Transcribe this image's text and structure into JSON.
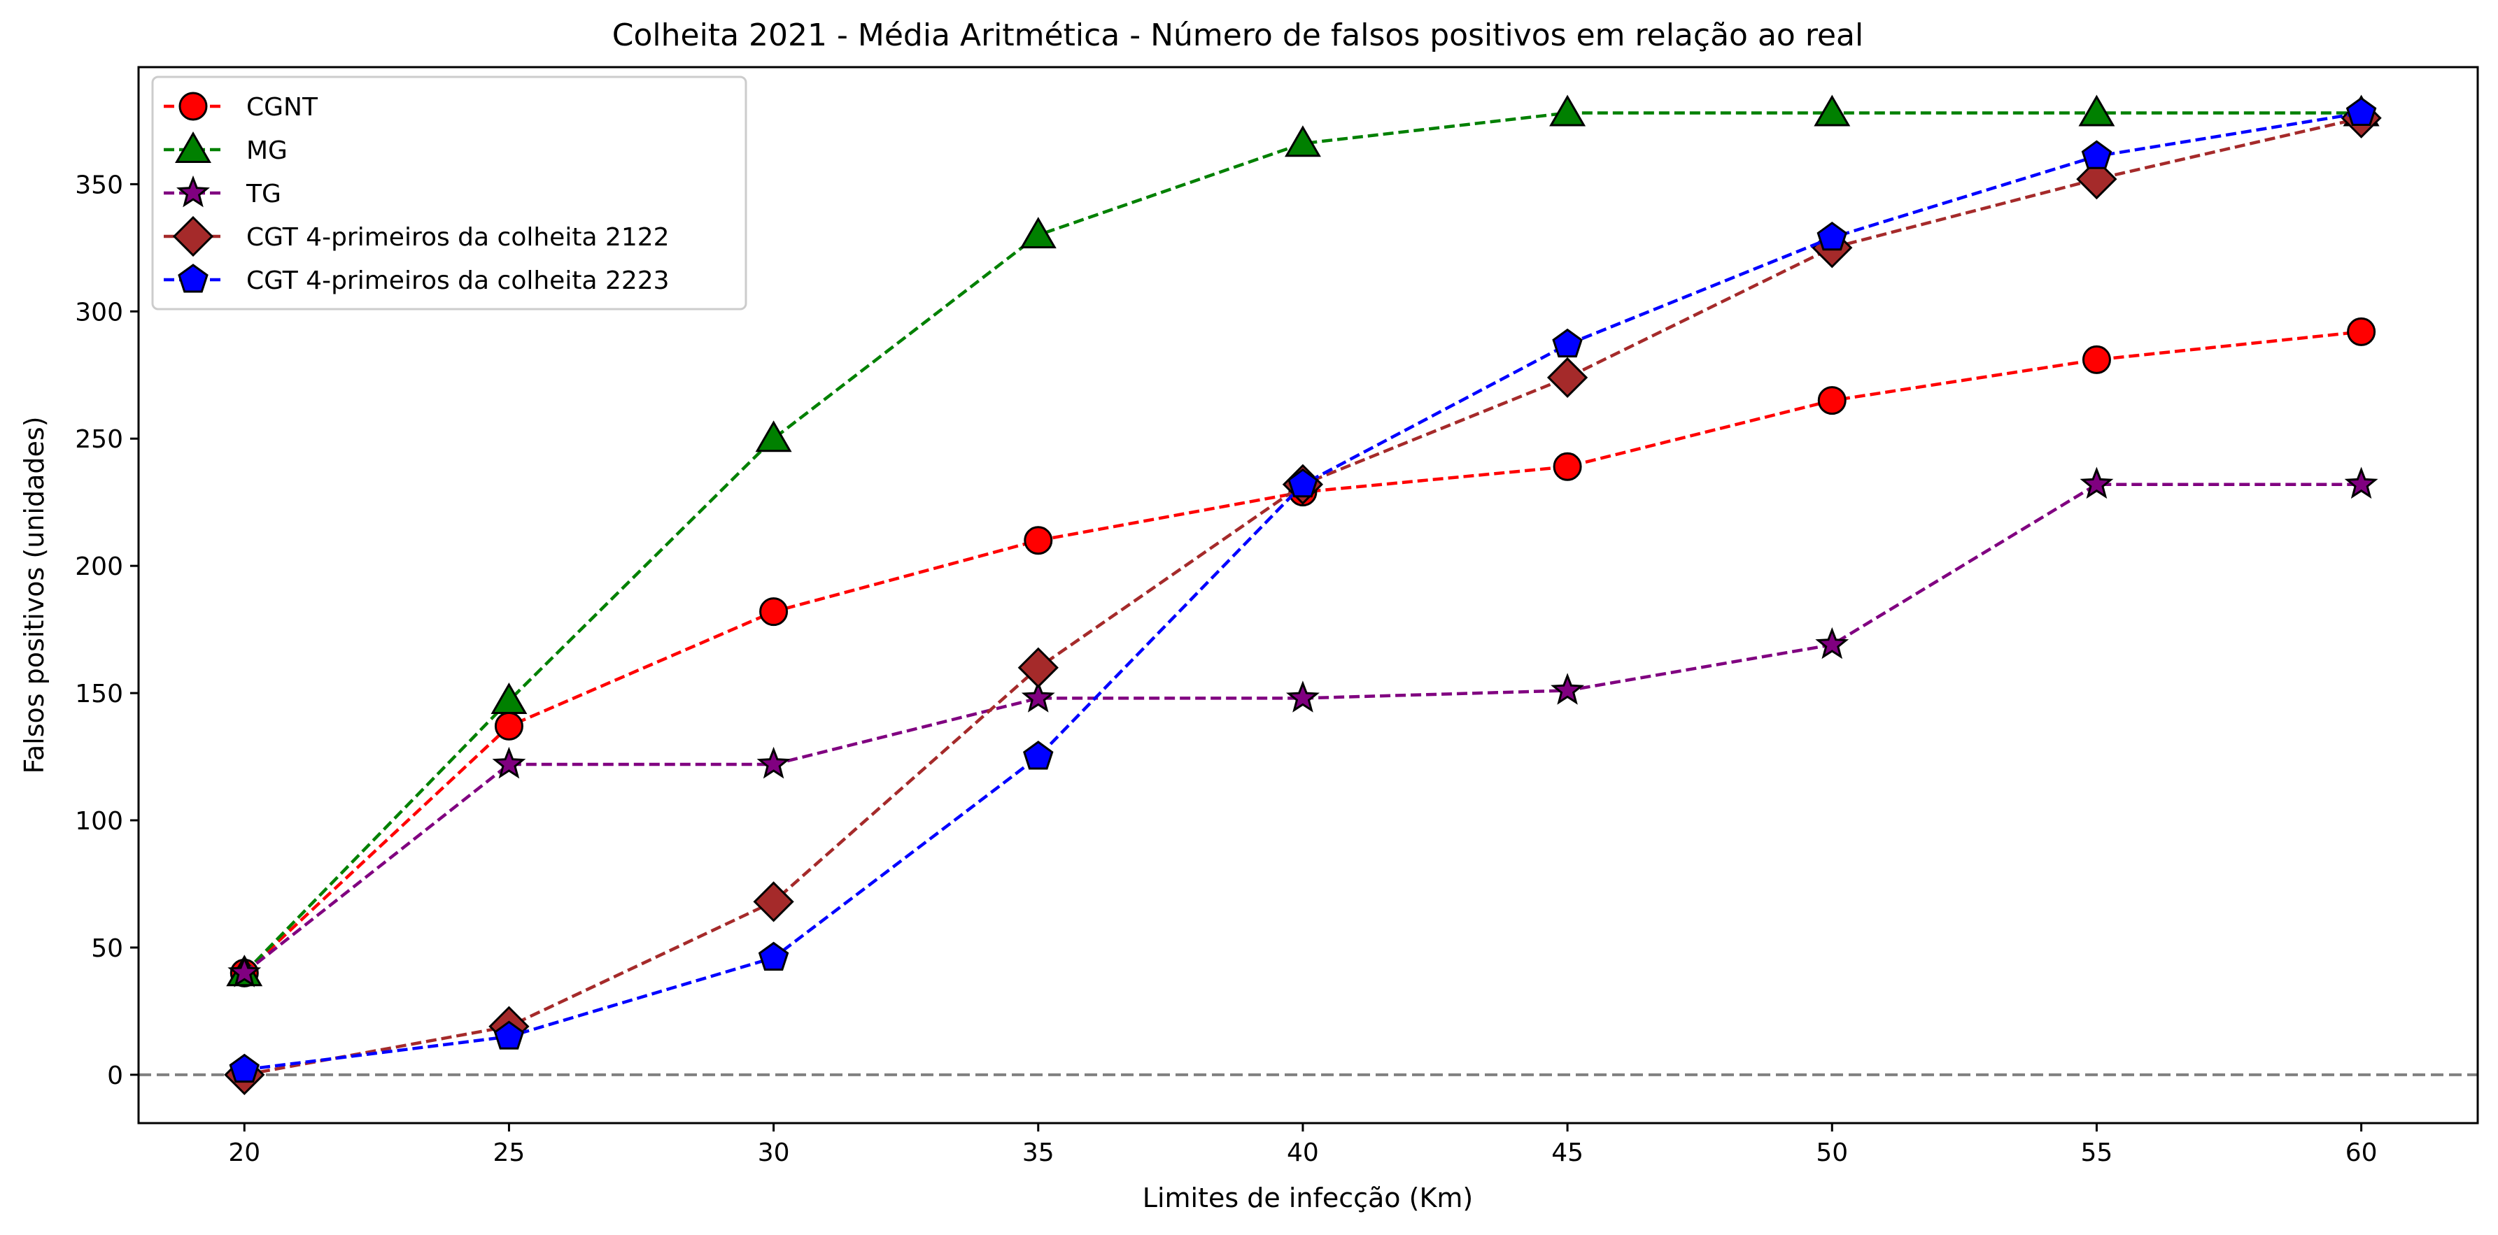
{
  "chart_data": {
    "type": "line",
    "title": "Colheita 2021 - Média Aritmética - Número de falsos positivos em relação ao real",
    "xlabel": "Limites de infecção (Km)",
    "ylabel": "Falsos positivos (unidades)",
    "x": [
      20,
      25,
      30,
      35,
      40,
      45,
      50,
      55,
      60
    ],
    "xlim": [
      18,
      62.2
    ],
    "ylim": [
      -19,
      396
    ],
    "xticks": [
      "20",
      "25",
      "30",
      "35",
      "40",
      "45",
      "50",
      "55",
      "60"
    ],
    "yticks": [
      "0",
      "50",
      "100",
      "150",
      "200",
      "250",
      "300",
      "350"
    ],
    "grid": false,
    "legend_position": "top-left",
    "reference_line": {
      "y": 0,
      "color": "#808080",
      "style": "dashed"
    },
    "series": [
      {
        "name": "CGNT",
        "color": "#ff0000",
        "marker": "circle",
        "values": [
          40,
          137,
          182,
          210,
          229,
          239,
          265,
          281,
          292
        ]
      },
      {
        "name": "MG",
        "color": "#008000",
        "marker": "triangle",
        "values": [
          40,
          147,
          250,
          330,
          366,
          378,
          378,
          378,
          378
        ]
      },
      {
        "name": "TG",
        "color": "#800080",
        "marker": "star",
        "values": [
          40,
          122,
          122,
          148,
          148,
          151,
          169,
          232,
          232
        ]
      },
      {
        "name": "CGT 4-primeiros da colheita 2122",
        "color": "#a52a2a",
        "marker": "diamond",
        "values": [
          0,
          19,
          68,
          160,
          232,
          274,
          325,
          352,
          376
        ]
      },
      {
        "name": "CGT 4-primeiros da colheita 2223",
        "color": "#0000ff",
        "marker": "pentagon",
        "values": [
          2,
          15,
          46,
          125,
          232,
          287,
          329,
          361,
          378
        ]
      }
    ]
  }
}
